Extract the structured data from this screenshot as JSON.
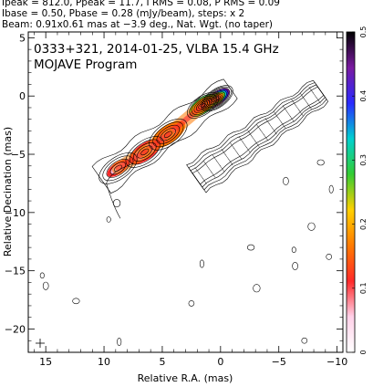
{
  "header_lines": [
    "Ipeak = 812.0, Ppeak = 11.7, I RMS = 0.08, P RMS = 0.09",
    "Ibase = 0.50, Pbase = 0.28 (mJy/beam), steps: x 2",
    "Beam: 0.91x0.61 mas at −3.9 deg., Nat. Wgt. (no taper)"
  ],
  "chart_data": {
    "type": "heatmap",
    "title": "0333+321, 2014-01-25, VLBA 15.4 GHz",
    "subtitle": "MOJAVE Program",
    "xlabel": "Relative R.A. (mas)",
    "ylabel": "Relative Decination (mas)",
    "xlim": [
      16.5,
      -10.5
    ],
    "ylim": [
      -22,
      5.5
    ],
    "xticks": [
      "15",
      "10",
      "5",
      "0",
      "−5",
      "−10"
    ],
    "xtick_values": [
      15,
      10,
      5,
      0,
      -5,
      -10
    ],
    "yticks": [
      "5",
      "0",
      "−5",
      "−10",
      "−15",
      "−20"
    ],
    "ytick_values": [
      5,
      0,
      -5,
      -10,
      -15,
      -20
    ],
    "colorbar": {
      "range": [
        0,
        0.5
      ],
      "ticks": [
        "0.5",
        "0.4",
        "0.3",
        "0.2",
        "0.1",
        "0"
      ],
      "tick_values": [
        0.5,
        0.4,
        0.3,
        0.2,
        0.1,
        0
      ]
    },
    "jet_components": [
      {
        "ra": 0.3,
        "dec": -0.2,
        "peak_frac": 1.0
      },
      {
        "ra": 1.5,
        "dec": -0.8,
        "peak_frac": 0.7
      },
      {
        "ra": 4.5,
        "dec": -3.3,
        "peak_frac": 0.45
      },
      {
        "ra": 6.5,
        "dec": -4.8,
        "peak_frac": 0.3
      },
      {
        "ra": 8.8,
        "dec": -6.2,
        "peak_frac": 0.15
      }
    ],
    "pol_offset_ra": -8.0
  },
  "colors": {
    "colorbar_stops": [
      "#ffffff",
      "#ffd0e8",
      "#ff2a2a",
      "#ff7a00",
      "#ffd000",
      "#33cc33",
      "#00d0d0",
      "#2a2aff",
      "#7a1aa0",
      "#000000"
    ]
  }
}
